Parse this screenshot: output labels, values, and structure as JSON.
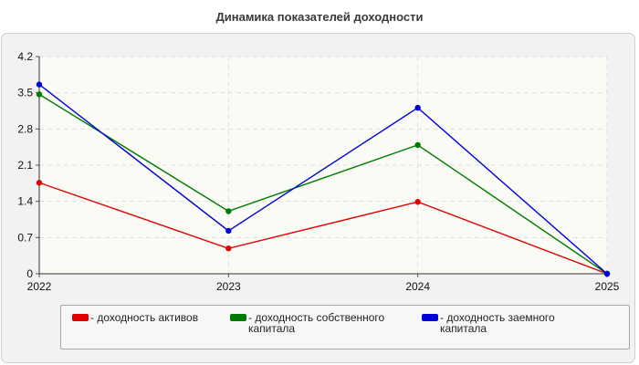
{
  "chart_data": {
    "type": "line",
    "title": "Динамика показателей доходности",
    "categories": [
      "2022",
      "2023",
      "2024",
      "2025"
    ],
    "ylim": [
      0,
      4.2
    ],
    "yticks": [
      "0",
      "0.7",
      "1.4",
      "2.1",
      "2.8",
      "3.5",
      "4.2"
    ],
    "xlabel": "",
    "ylabel": "",
    "grid": true,
    "legend_position": "bottom",
    "series": [
      {
        "name": "- доходность активов",
        "color": "#e00000",
        "values": [
          1.76,
          0.49,
          1.39,
          0.0
        ]
      },
      {
        "name": "- доходность собственного капитала",
        "color": "#007a00",
        "values": [
          3.47,
          1.21,
          2.49,
          0.0
        ]
      },
      {
        "name": "- доходность заемного капитала",
        "color": "#0000d8",
        "values": [
          3.66,
          0.83,
          3.21,
          0.0
        ]
      }
    ]
  }
}
